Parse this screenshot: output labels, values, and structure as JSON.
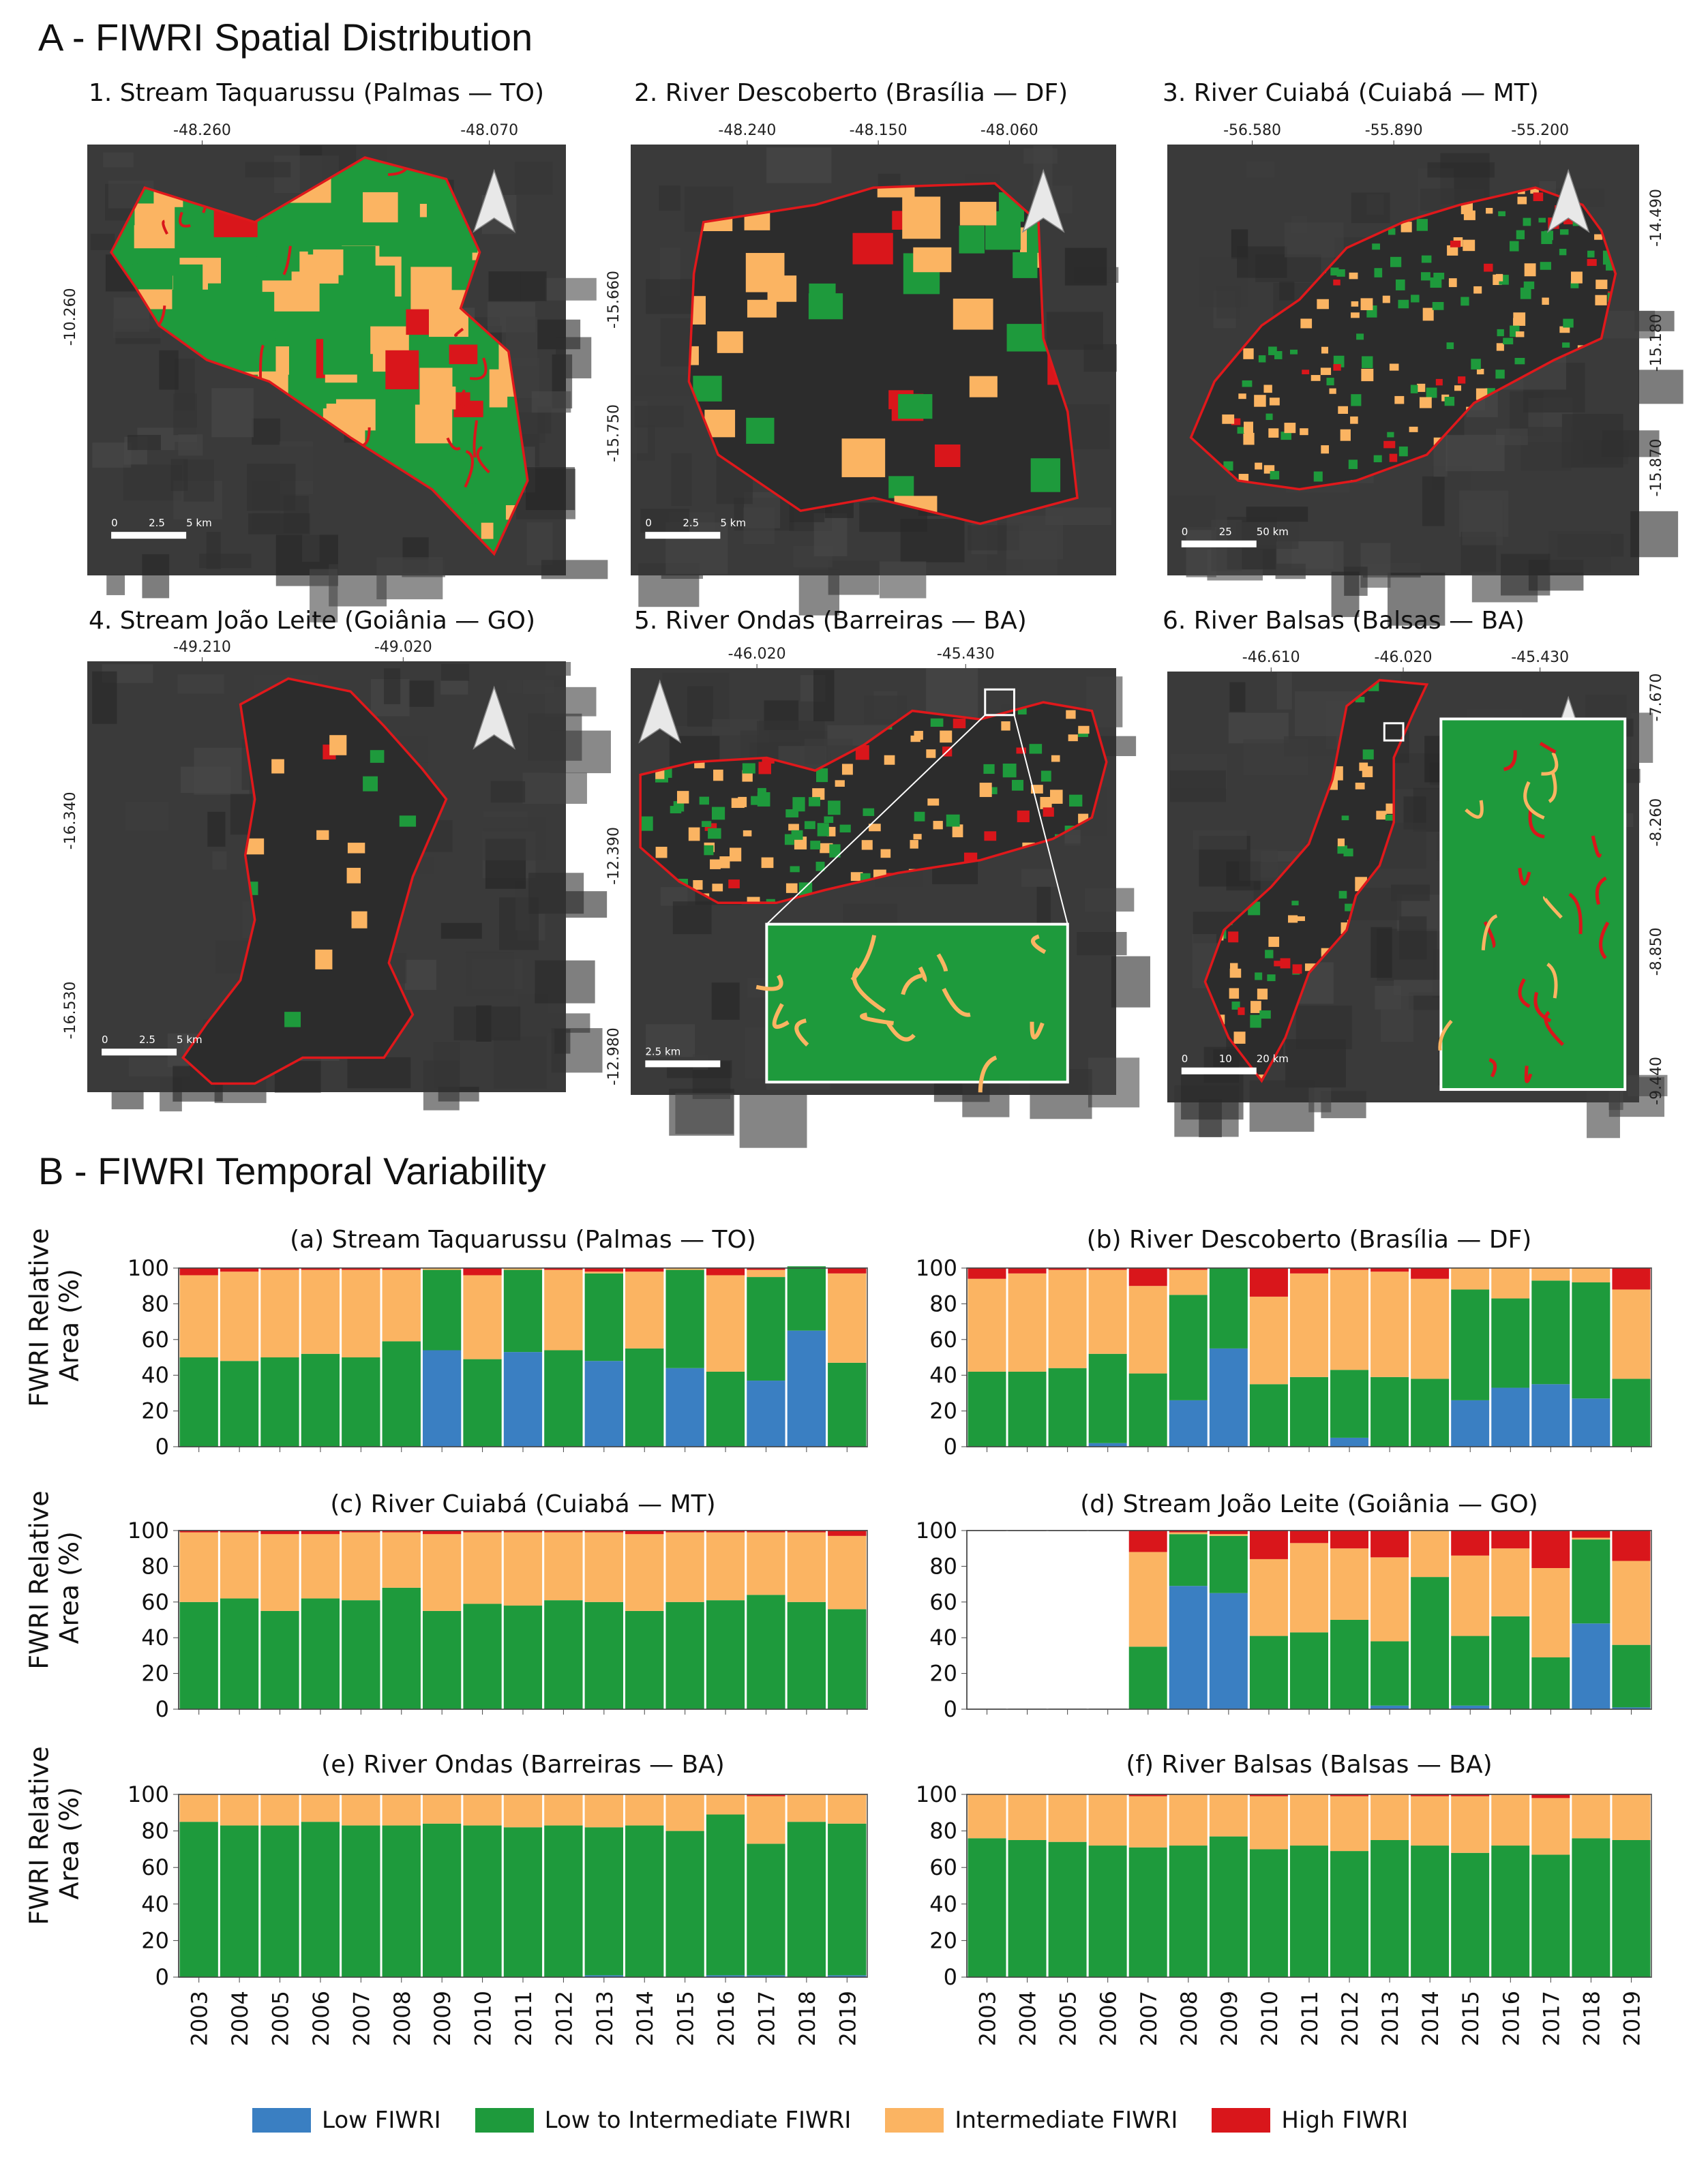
{
  "sections": {
    "a_title": "A - FIWRI Spatial Distribution",
    "b_title": "B - FIWRI Temporal Variability"
  },
  "maps": [
    {
      "title": "1. Stream Taquarussu (Palmas — TO)",
      "top_ticks": [
        "-48.260",
        "-48.070"
      ],
      "left_ticks": [
        "-10.260"
      ],
      "right_ticks": [],
      "scale": [
        "0",
        "2.5",
        "5 km"
      ]
    },
    {
      "title": "2. River Descoberto (Brasília — DF)",
      "top_ticks": [
        "-48.240",
        "-48.150",
        "-48.060"
      ],
      "left_ticks": [
        "-15.660",
        "-15.750"
      ],
      "right_ticks": [],
      "scale": [
        "0",
        "2.5",
        "5 km"
      ]
    },
    {
      "title": "3. River Cuiabá (Cuiabá — MT)",
      "top_ticks": [
        "-56.580",
        "-55.890",
        "-55.200"
      ],
      "left_ticks": [],
      "right_ticks": [
        "-14.490",
        "-15.180",
        "-15.870"
      ],
      "scale": [
        "0",
        "25",
        "50 km"
      ]
    },
    {
      "title": "4. Stream João Leite (Goiânia — GO)",
      "top_ticks": [
        "-49.210",
        "-49.020"
      ],
      "left_ticks": [
        "-16.340",
        "-16.530"
      ],
      "right_ticks": [],
      "scale": [
        "0",
        "2.5",
        "5 km"
      ]
    },
    {
      "title": "5. River Ondas (Barreiras — BA)",
      "top_ticks": [
        "-46.020",
        "-45.430"
      ],
      "left_ticks": [
        "-12.390",
        "-12.980"
      ],
      "right_ticks": [],
      "scale": [
        "2.5 km"
      ]
    },
    {
      "title": "6. River Balsas (Balsas — BA)",
      "top_ticks": [
        "-46.610",
        "-46.020",
        "-45.430"
      ],
      "left_ticks": [],
      "right_ticks": [
        "-7.670",
        "-8.260",
        "-8.850",
        "-9.440"
      ],
      "scale": [
        "0",
        "10",
        "20 km"
      ]
    }
  ],
  "colors": {
    "low": "#3a7fc2",
    "low_to_intermediate": "#1e9a3c",
    "intermediate": "#fbb462",
    "high": "#d9161b",
    "map_background": "#3a3a3a",
    "boundary": "#e0181b"
  },
  "ylabel_line1": "FWRI Relative",
  "ylabel_line2": "Area (%)",
  "legend": [
    {
      "label": "Low FIWRI",
      "color": "#3a7fc2"
    },
    {
      "label": "Low to Intermediate FIWRI",
      "color": "#1e9a3c"
    },
    {
      "label": "Intermediate FIWRI",
      "color": "#fbb462"
    },
    {
      "label": "High FIWRI",
      "color": "#d9161b"
    }
  ],
  "chart_data": [
    {
      "type": "bar",
      "stacked": true,
      "title": "(a) Stream Taquarussu (Palmas — TO)",
      "categories": [
        "2003",
        "2004",
        "2005",
        "2006",
        "2007",
        "2008",
        "2009",
        "2010",
        "2011",
        "2012",
        "2013",
        "2014",
        "2015",
        "2016",
        "2017",
        "2018",
        "2019"
      ],
      "ylim": [
        0,
        100
      ],
      "yticks": [
        0,
        20,
        40,
        60,
        80,
        100
      ],
      "series": [
        {
          "name": "Low FIWRI",
          "values": [
            0,
            0,
            0,
            0,
            0,
            0,
            54,
            0,
            53,
            0,
            48,
            0,
            44,
            0,
            37,
            65,
            0
          ]
        },
        {
          "name": "Low to Intermediate FIWRI",
          "values": [
            50,
            48,
            50,
            52,
            50,
            59,
            45,
            49,
            46,
            54,
            49,
            55,
            55,
            42,
            58,
            36,
            47
          ]
        },
        {
          "name": "Intermediate FIWRI",
          "values": [
            46,
            50,
            49,
            47,
            49,
            40,
            1,
            47,
            1,
            45,
            1,
            43,
            1,
            54,
            4,
            0,
            50
          ]
        },
        {
          "name": "High FIWRI",
          "values": [
            4,
            2,
            1,
            1,
            1,
            1,
            0,
            4,
            0,
            1,
            2,
            2,
            0,
            4,
            1,
            0,
            3
          ]
        }
      ]
    },
    {
      "type": "bar",
      "stacked": true,
      "title": "(b) River Descoberto (Brasília — DF)",
      "categories": [
        "2003",
        "2004",
        "2005",
        "2006",
        "2007",
        "2008",
        "2009",
        "2010",
        "2011",
        "2012",
        "2013",
        "2014",
        "2015",
        "2016",
        "2017",
        "2018",
        "2019"
      ],
      "ylim": [
        0,
        100
      ],
      "yticks": [
        0,
        20,
        40,
        60,
        80,
        100
      ],
      "series": [
        {
          "name": "Low FIWRI",
          "values": [
            0,
            0,
            0,
            2,
            0,
            26,
            55,
            0,
            0,
            5,
            0,
            0,
            26,
            33,
            35,
            27,
            0
          ]
        },
        {
          "name": "Low to Intermediate FIWRI",
          "values": [
            42,
            42,
            44,
            50,
            41,
            59,
            45,
            35,
            39,
            38,
            39,
            38,
            62,
            50,
            58,
            65,
            38
          ]
        },
        {
          "name": "Intermediate FIWRI",
          "values": [
            52,
            55,
            55,
            47,
            49,
            14,
            0,
            49,
            58,
            56,
            59,
            56,
            12,
            17,
            7,
            8,
            50
          ]
        },
        {
          "name": "High FIWRI",
          "values": [
            6,
            3,
            1,
            1,
            10,
            1,
            0,
            16,
            3,
            1,
            2,
            6,
            0,
            0,
            0,
            0,
            12
          ]
        }
      ]
    },
    {
      "type": "bar",
      "stacked": true,
      "title": "(c) River Cuiabá (Cuiabá — MT)",
      "categories": [
        "2003",
        "2004",
        "2005",
        "2006",
        "2007",
        "2008",
        "2009",
        "2010",
        "2011",
        "2012",
        "2013",
        "2014",
        "2015",
        "2016",
        "2017",
        "2018",
        "2019"
      ],
      "ylim": [
        0,
        100
      ],
      "yticks": [
        0,
        20,
        40,
        60,
        80,
        100
      ],
      "series": [
        {
          "name": "Low FIWRI",
          "values": [
            0,
            0,
            0,
            0,
            0,
            0,
            0,
            0,
            0,
            0,
            0,
            0,
            0,
            0,
            0,
            0,
            0
          ]
        },
        {
          "name": "Low to Intermediate FIWRI",
          "values": [
            60,
            62,
            55,
            62,
            61,
            68,
            55,
            59,
            58,
            61,
            60,
            55,
            60,
            61,
            64,
            60,
            56
          ]
        },
        {
          "name": "Intermediate FIWRI",
          "values": [
            39,
            37,
            43,
            36,
            38,
            31,
            43,
            40,
            41,
            38,
            39,
            43,
            39,
            38,
            35,
            39,
            41
          ]
        },
        {
          "name": "High FIWRI",
          "values": [
            1,
            1,
            2,
            2,
            1,
            1,
            2,
            1,
            1,
            1,
            1,
            2,
            1,
            1,
            1,
            1,
            3
          ]
        }
      ]
    },
    {
      "type": "bar",
      "stacked": true,
      "title": "(d) Stream João Leite (Goiânia — GO)",
      "categories": [
        "2003",
        "2004",
        "2005",
        "2006",
        "2007",
        "2008",
        "2009",
        "2010",
        "2011",
        "2012",
        "2013",
        "2014",
        "2015",
        "2016",
        "2017",
        "2018",
        "2019"
      ],
      "ylim": [
        0,
        100
      ],
      "yticks": [
        0,
        20,
        40,
        60,
        80,
        100
      ],
      "series": [
        {
          "name": "Low FIWRI",
          "values": [
            0,
            0,
            0,
            0,
            0,
            69,
            65,
            0,
            0,
            0,
            2,
            0,
            2,
            0,
            0,
            48,
            1
          ]
        },
        {
          "name": "Low to Intermediate FIWRI",
          "values": [
            0,
            0,
            0,
            0,
            35,
            29,
            32,
            41,
            43,
            50,
            36,
            74,
            39,
            52,
            29,
            47,
            35
          ]
        },
        {
          "name": "Intermediate FIWRI",
          "values": [
            0,
            0,
            0,
            0,
            53,
            1,
            1,
            43,
            50,
            40,
            47,
            26,
            45,
            38,
            50,
            1,
            47
          ]
        },
        {
          "name": "High FIWRI",
          "values": [
            0,
            0,
            0,
            0,
            12,
            1,
            2,
            16,
            7,
            10,
            15,
            0,
            14,
            10,
            21,
            4,
            17
          ]
        }
      ]
    },
    {
      "type": "bar",
      "stacked": true,
      "title": "(e) River Ondas (Barreiras — BA)",
      "categories": [
        "2003",
        "2004",
        "2005",
        "2006",
        "2007",
        "2008",
        "2009",
        "2010",
        "2011",
        "2012",
        "2013",
        "2014",
        "2015",
        "2016",
        "2017",
        "2018",
        "2019"
      ],
      "ylim": [
        0,
        100
      ],
      "yticks": [
        0,
        20,
        40,
        60,
        80,
        100
      ],
      "series": [
        {
          "name": "Low FIWRI",
          "values": [
            0,
            0,
            0,
            0,
            0,
            0,
            0,
            0,
            0,
            0,
            1,
            0,
            0,
            1,
            1,
            0,
            1
          ]
        },
        {
          "name": "Low to Intermediate FIWRI",
          "values": [
            85,
            83,
            83,
            85,
            83,
            83,
            84,
            83,
            82,
            83,
            81,
            83,
            80,
            88,
            72,
            85,
            83
          ]
        },
        {
          "name": "Intermediate FIWRI",
          "values": [
            15,
            17,
            17,
            15,
            17,
            17,
            16,
            17,
            18,
            17,
            18,
            17,
            20,
            11,
            26,
            15,
            16
          ]
        },
        {
          "name": "High FIWRI",
          "values": [
            0,
            0,
            0,
            0,
            0,
            0,
            0,
            0,
            0,
            0,
            0,
            0,
            0,
            0,
            1,
            0,
            0
          ]
        }
      ]
    },
    {
      "type": "bar",
      "stacked": true,
      "title": "(f) River Balsas (Balsas — BA)",
      "categories": [
        "2003",
        "2004",
        "2005",
        "2006",
        "2007",
        "2008",
        "2009",
        "2010",
        "2011",
        "2012",
        "2013",
        "2014",
        "2015",
        "2016",
        "2017",
        "2018",
        "2019"
      ],
      "ylim": [
        0,
        100
      ],
      "yticks": [
        0,
        20,
        40,
        60,
        80,
        100
      ],
      "series": [
        {
          "name": "Low FIWRI",
          "values": [
            0,
            0,
            0,
            0,
            0,
            0,
            0,
            0,
            0,
            0,
            0,
            0,
            0,
            0,
            0,
            0,
            0
          ]
        },
        {
          "name": "Low to Intermediate FIWRI",
          "values": [
            76,
            75,
            74,
            72,
            71,
            72,
            77,
            70,
            72,
            69,
            75,
            72,
            68,
            72,
            67,
            76,
            75
          ]
        },
        {
          "name": "Intermediate FIWRI",
          "values": [
            24,
            25,
            26,
            28,
            28,
            28,
            23,
            29,
            28,
            30,
            25,
            27,
            31,
            28,
            31,
            24,
            25
          ]
        },
        {
          "name": "High FIWRI",
          "values": [
            0,
            0,
            0,
            0,
            1,
            0,
            0,
            1,
            0,
            1,
            0,
            1,
            1,
            0,
            2,
            0,
            0
          ]
        }
      ]
    }
  ]
}
